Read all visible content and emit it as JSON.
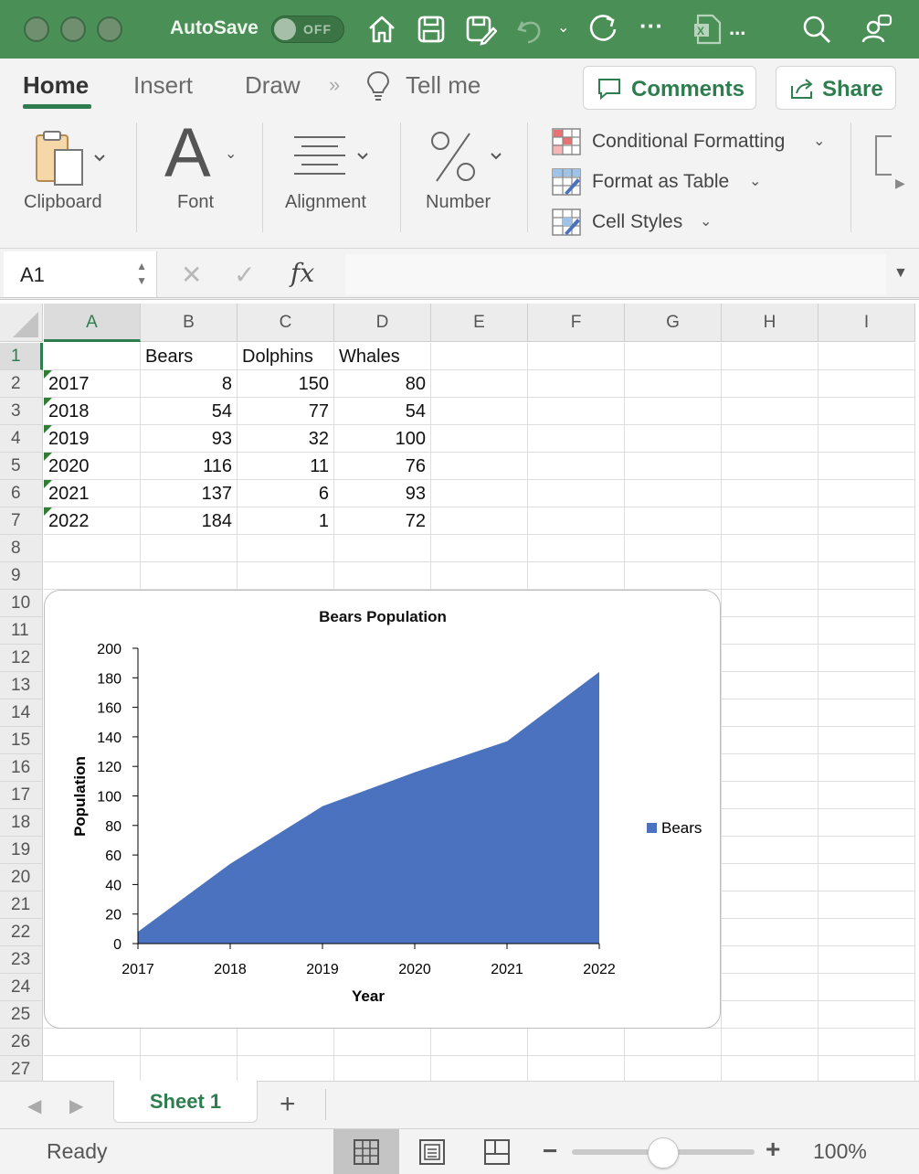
{
  "titlebar": {
    "autosave_label": "AutoSave",
    "autosave_state": "OFF",
    "filename": "...",
    "icons": [
      "home-icon",
      "save-icon",
      "save-as-icon",
      "undo-icon",
      "redo-icon",
      "more-icon",
      "excel-file-icon",
      "search-icon",
      "collaborate-icon"
    ]
  },
  "ribbon": {
    "tabs": [
      {
        "label": "Home"
      },
      {
        "label": "Insert"
      },
      {
        "label": "Draw"
      },
      {
        "label": "Tell me"
      }
    ],
    "more_symbol": "»",
    "comments_label": "Comments",
    "share_label": "Share",
    "groups": {
      "clipboard": "Clipboard",
      "font": "Font",
      "alignment": "Alignment",
      "number": "Number"
    },
    "styles": [
      {
        "label": "Conditional Formatting"
      },
      {
        "label": "Format as Table"
      },
      {
        "label": "Cell Styles"
      }
    ]
  },
  "formula_bar": {
    "name_box": "A1",
    "fx_label": "fx",
    "content": ""
  },
  "columns": [
    "A",
    "B",
    "C",
    "D",
    "E",
    "F",
    "G",
    "H",
    "I"
  ],
  "rows": [
    "1",
    "2",
    "3",
    "4",
    "5",
    "6",
    "7",
    "8",
    "9",
    "10",
    "11",
    "12",
    "13",
    "14",
    "15",
    "16",
    "17",
    "18",
    "19",
    "20",
    "21",
    "22",
    "23",
    "24",
    "25",
    "26",
    "27"
  ],
  "sheet": {
    "header": [
      "",
      "Bears",
      "Dolphins",
      "Whales"
    ],
    "data": [
      [
        "2017",
        "8",
        "150",
        "80"
      ],
      [
        "2018",
        "54",
        "77",
        "54"
      ],
      [
        "2019",
        "93",
        "32",
        "100"
      ],
      [
        "2020",
        "116",
        "11",
        "76"
      ],
      [
        "2021",
        "137",
        "6",
        "93"
      ],
      [
        "2022",
        "184",
        "1",
        "72"
      ]
    ]
  },
  "chart_data": {
    "type": "area",
    "title": "Bears Population",
    "xlabel": "Year",
    "ylabel": "Population",
    "categories": [
      "2017",
      "2018",
      "2019",
      "2020",
      "2021",
      "2022"
    ],
    "series": [
      {
        "name": "Bears",
        "values": [
          8,
          54,
          93,
          116,
          137,
          184
        ],
        "color": "#4b72bf"
      }
    ],
    "ylim": [
      0,
      200
    ],
    "yticks": [
      0,
      20,
      40,
      60,
      80,
      100,
      120,
      140,
      160,
      180,
      200
    ],
    "grid": false,
    "legend": "right"
  },
  "sheet_tabs": {
    "active": "Sheet 1",
    "add_symbol": "+"
  },
  "status": {
    "text": "Ready",
    "zoom": "100%",
    "zoom_value": 100
  }
}
